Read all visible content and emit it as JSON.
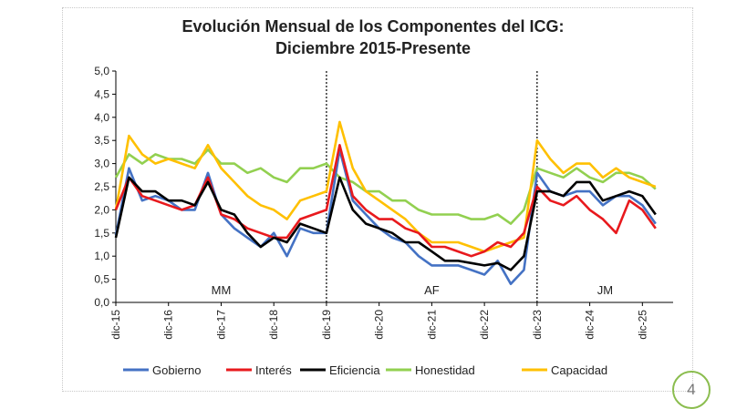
{
  "page": {
    "number": "4",
    "badge_color": "#8bbd4f"
  },
  "chart_data": {
    "type": "line",
    "title": [
      "Evolución Mensual de los Componentes del ICG:",
      "Diciembre 2015-Presente"
    ],
    "xlabel": "",
    "ylabel": "",
    "ylim": [
      0,
      5
    ],
    "yticks": [
      "0,0",
      "0,5",
      "1,0",
      "1,5",
      "2,0",
      "2,5",
      "3,0",
      "3,5",
      "4,0",
      "4,5",
      "5,0"
    ],
    "xticks": [
      "dic-15",
      "dic-16",
      "dic-17",
      "dic-18",
      "dic-19",
      "dic-20",
      "dic-21",
      "dic-22",
      "dic-23",
      "dic-24",
      "dic-25"
    ],
    "x_start": "dic-15",
    "x_end": "jul-26",
    "grid": false,
    "legend_position": "bottom",
    "periods": [
      {
        "label": "MM",
        "from": "dic-15",
        "to": "dic-19"
      },
      {
        "label": "AF",
        "from": "dic-19",
        "to": "dic-23"
      },
      {
        "label": "JM",
        "from": "dic-23",
        "to": "jul-26"
      }
    ],
    "series": [
      {
        "name": "Gobierno",
        "color": "#4472c4",
        "points": [
          [
            "dic-15",
            1.45
          ],
          [
            "mar-16",
            2.9
          ],
          [
            "jun-16",
            2.2
          ],
          [
            "sep-16",
            2.3
          ],
          [
            "dic-16",
            2.2
          ],
          [
            "mar-17",
            2.0
          ],
          [
            "jun-17",
            2.0
          ],
          [
            "sep-17",
            2.8
          ],
          [
            "dic-17",
            1.9
          ],
          [
            "mar-18",
            1.6
          ],
          [
            "jun-18",
            1.4
          ],
          [
            "sep-18",
            1.2
          ],
          [
            "dic-18",
            1.5
          ],
          [
            "mar-19",
            1.0
          ],
          [
            "jun-19",
            1.6
          ],
          [
            "sep-19",
            1.5
          ],
          [
            "dic-19",
            1.5
          ],
          [
            "mar-20",
            3.3
          ],
          [
            "jun-20",
            2.2
          ],
          [
            "sep-20",
            1.9
          ],
          [
            "dic-20",
            1.6
          ],
          [
            "mar-21",
            1.4
          ],
          [
            "jun-21",
            1.3
          ],
          [
            "sep-21",
            1.0
          ],
          [
            "dic-21",
            0.8
          ],
          [
            "mar-22",
            0.8
          ],
          [
            "jun-22",
            0.8
          ],
          [
            "sep-22",
            0.7
          ],
          [
            "dic-22",
            0.6
          ],
          [
            "mar-23",
            0.9
          ],
          [
            "jun-23",
            0.4
          ],
          [
            "sep-23",
            0.7
          ],
          [
            "dic-23",
            2.8
          ],
          [
            "mar-24",
            2.4
          ],
          [
            "jun-24",
            2.3
          ],
          [
            "sep-24",
            2.4
          ],
          [
            "dic-24",
            2.4
          ],
          [
            "mar-25",
            2.1
          ],
          [
            "jun-25",
            2.3
          ],
          [
            "sep-25",
            2.3
          ],
          [
            "dic-25",
            2.1
          ],
          [
            "mar-26",
            1.7
          ]
        ]
      },
      {
        "name": "Interés",
        "color": "#e8191d",
        "points": [
          [
            "dic-15",
            2.0
          ],
          [
            "mar-16",
            2.7
          ],
          [
            "jun-16",
            2.3
          ],
          [
            "sep-16",
            2.2
          ],
          [
            "dic-16",
            2.1
          ],
          [
            "mar-17",
            2.0
          ],
          [
            "jun-17",
            2.1
          ],
          [
            "sep-17",
            2.7
          ],
          [
            "dic-17",
            1.9
          ],
          [
            "mar-18",
            1.8
          ],
          [
            "jun-18",
            1.6
          ],
          [
            "sep-18",
            1.5
          ],
          [
            "dic-18",
            1.4
          ],
          [
            "mar-19",
            1.4
          ],
          [
            "jun-19",
            1.8
          ],
          [
            "sep-19",
            1.9
          ],
          [
            "dic-19",
            2.0
          ],
          [
            "mar-20",
            3.4
          ],
          [
            "jun-20",
            2.3
          ],
          [
            "sep-20",
            2.0
          ],
          [
            "dic-20",
            1.8
          ],
          [
            "mar-21",
            1.8
          ],
          [
            "jun-21",
            1.6
          ],
          [
            "sep-21",
            1.5
          ],
          [
            "dic-21",
            1.2
          ],
          [
            "mar-22",
            1.2
          ],
          [
            "jun-22",
            1.1
          ],
          [
            "sep-22",
            1.0
          ],
          [
            "dic-22",
            1.1
          ],
          [
            "mar-23",
            1.3
          ],
          [
            "jun-23",
            1.2
          ],
          [
            "sep-23",
            1.5
          ],
          [
            "dic-23",
            2.5
          ],
          [
            "mar-24",
            2.2
          ],
          [
            "jun-24",
            2.1
          ],
          [
            "sep-24",
            2.3
          ],
          [
            "dic-24",
            2.0
          ],
          [
            "mar-25",
            1.8
          ],
          [
            "jun-25",
            1.5
          ],
          [
            "sep-25",
            2.2
          ],
          [
            "dic-25",
            2.0
          ],
          [
            "mar-26",
            1.6
          ]
        ]
      },
      {
        "name": "Eficiencia",
        "color": "#000000",
        "points": [
          [
            "dic-15",
            1.4
          ],
          [
            "mar-16",
            2.7
          ],
          [
            "jun-16",
            2.4
          ],
          [
            "sep-16",
            2.4
          ],
          [
            "dic-16",
            2.2
          ],
          [
            "mar-17",
            2.2
          ],
          [
            "jun-17",
            2.1
          ],
          [
            "sep-17",
            2.6
          ],
          [
            "dic-17",
            2.0
          ],
          [
            "mar-18",
            1.9
          ],
          [
            "jun-18",
            1.5
          ],
          [
            "sep-18",
            1.2
          ],
          [
            "dic-18",
            1.4
          ],
          [
            "mar-19",
            1.3
          ],
          [
            "jun-19",
            1.7
          ],
          [
            "sep-19",
            1.6
          ],
          [
            "dic-19",
            1.5
          ],
          [
            "mar-20",
            2.7
          ],
          [
            "jun-20",
            2.0
          ],
          [
            "sep-20",
            1.7
          ],
          [
            "dic-20",
            1.6
          ],
          [
            "mar-21",
            1.5
          ],
          [
            "jun-21",
            1.3
          ],
          [
            "sep-21",
            1.3
          ],
          [
            "dic-21",
            1.1
          ],
          [
            "mar-22",
            0.9
          ],
          [
            "jun-22",
            0.9
          ],
          [
            "sep-22",
            0.85
          ],
          [
            "dic-22",
            0.8
          ],
          [
            "mar-23",
            0.85
          ],
          [
            "jun-23",
            0.7
          ],
          [
            "sep-23",
            1.0
          ],
          [
            "dic-23",
            2.4
          ],
          [
            "mar-24",
            2.4
          ],
          [
            "jun-24",
            2.3
          ],
          [
            "sep-24",
            2.6
          ],
          [
            "dic-24",
            2.6
          ],
          [
            "mar-25",
            2.2
          ],
          [
            "jun-25",
            2.3
          ],
          [
            "sep-25",
            2.4
          ],
          [
            "dic-25",
            2.3
          ],
          [
            "mar-26",
            1.9
          ]
        ]
      },
      {
        "name": "Honestidad",
        "color": "#92d050",
        "points": [
          [
            "dic-15",
            2.7
          ],
          [
            "mar-16",
            3.2
          ],
          [
            "jun-16",
            3.0
          ],
          [
            "sep-16",
            3.2
          ],
          [
            "dic-16",
            3.1
          ],
          [
            "mar-17",
            3.1
          ],
          [
            "jun-17",
            3.0
          ],
          [
            "sep-17",
            3.3
          ],
          [
            "dic-17",
            3.0
          ],
          [
            "mar-18",
            3.0
          ],
          [
            "jun-18",
            2.8
          ],
          [
            "sep-18",
            2.9
          ],
          [
            "dic-18",
            2.7
          ],
          [
            "mar-19",
            2.6
          ],
          [
            "jun-19",
            2.9
          ],
          [
            "sep-19",
            2.9
          ],
          [
            "dic-19",
            3.0
          ],
          [
            "mar-20",
            2.7
          ],
          [
            "jun-20",
            2.6
          ],
          [
            "sep-20",
            2.4
          ],
          [
            "dic-20",
            2.4
          ],
          [
            "mar-21",
            2.2
          ],
          [
            "jun-21",
            2.2
          ],
          [
            "sep-21",
            2.0
          ],
          [
            "dic-21",
            1.9
          ],
          [
            "mar-22",
            1.9
          ],
          [
            "jun-22",
            1.9
          ],
          [
            "sep-22",
            1.8
          ],
          [
            "dic-22",
            1.8
          ],
          [
            "mar-23",
            1.9
          ],
          [
            "jun-23",
            1.7
          ],
          [
            "sep-23",
            2.0
          ],
          [
            "dic-23",
            2.9
          ],
          [
            "mar-24",
            2.8
          ],
          [
            "jun-24",
            2.7
          ],
          [
            "sep-24",
            2.9
          ],
          [
            "dic-24",
            2.7
          ],
          [
            "mar-25",
            2.6
          ],
          [
            "jun-25",
            2.8
          ],
          [
            "sep-25",
            2.8
          ],
          [
            "dic-25",
            2.7
          ],
          [
            "mar-26",
            2.45
          ]
        ]
      },
      {
        "name": "Capacidad",
        "color": "#ffc000",
        "points": [
          [
            "dic-15",
            2.0
          ],
          [
            "mar-16",
            3.6
          ],
          [
            "jun-16",
            3.2
          ],
          [
            "sep-16",
            3.0
          ],
          [
            "dic-16",
            3.1
          ],
          [
            "mar-17",
            3.0
          ],
          [
            "jun-17",
            2.9
          ],
          [
            "sep-17",
            3.4
          ],
          [
            "dic-17",
            2.9
          ],
          [
            "mar-18",
            2.6
          ],
          [
            "jun-18",
            2.3
          ],
          [
            "sep-18",
            2.1
          ],
          [
            "dic-18",
            2.0
          ],
          [
            "mar-19",
            1.8
          ],
          [
            "jun-19",
            2.2
          ],
          [
            "sep-19",
            2.3
          ],
          [
            "dic-19",
            2.4
          ],
          [
            "mar-20",
            3.9
          ],
          [
            "jun-20",
            2.9
          ],
          [
            "sep-20",
            2.4
          ],
          [
            "dic-20",
            2.2
          ],
          [
            "mar-21",
            2.0
          ],
          [
            "jun-21",
            1.8
          ],
          [
            "sep-21",
            1.5
          ],
          [
            "dic-21",
            1.3
          ],
          [
            "mar-22",
            1.3
          ],
          [
            "jun-22",
            1.3
          ],
          [
            "sep-22",
            1.2
          ],
          [
            "dic-22",
            1.1
          ],
          [
            "mar-23",
            1.2
          ],
          [
            "jun-23",
            1.3
          ],
          [
            "sep-23",
            1.4
          ],
          [
            "dic-23",
            3.5
          ],
          [
            "mar-24",
            3.1
          ],
          [
            "jun-24",
            2.8
          ],
          [
            "sep-24",
            3.0
          ],
          [
            "dic-24",
            3.0
          ],
          [
            "mar-25",
            2.7
          ],
          [
            "jun-25",
            2.9
          ],
          [
            "sep-25",
            2.7
          ],
          [
            "dic-25",
            2.6
          ],
          [
            "mar-26",
            2.5
          ]
        ]
      }
    ]
  }
}
